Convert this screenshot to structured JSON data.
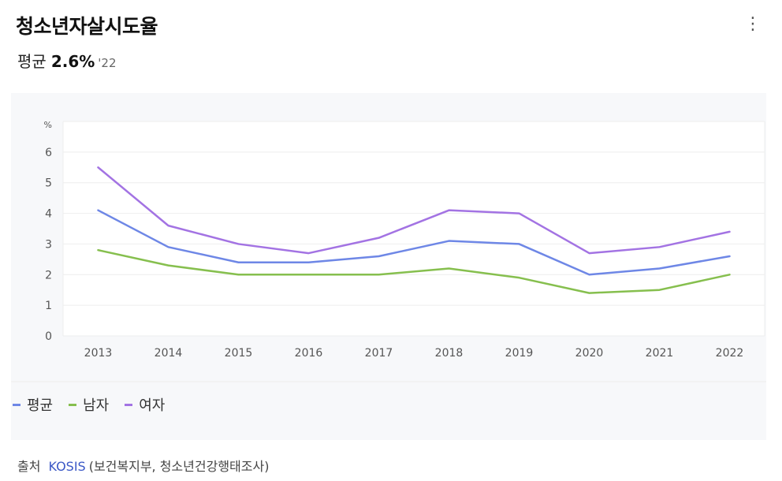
{
  "header": {
    "title": "청소년자살시도율",
    "more_icon": "⋮",
    "summary_label": "평균",
    "summary_value": "2.6%",
    "summary_year": "'22"
  },
  "source": {
    "label": "출처",
    "link_text": "KOSIS",
    "detail": "(보건복지부, 청소년건강행태조사)"
  },
  "colors": {
    "avg": "#6e87e6",
    "male": "#86bf4e",
    "female": "#a373e3"
  },
  "chart_data": {
    "type": "line",
    "ylabel": "%",
    "ylim": [
      0,
      7
    ],
    "yticks": [
      0,
      1,
      2,
      3,
      4,
      5,
      6
    ],
    "grid": true,
    "legend": "bottom-left",
    "categories": [
      "2013",
      "2014",
      "2015",
      "2016",
      "2017",
      "2018",
      "2019",
      "2020",
      "2021",
      "2022"
    ],
    "series": [
      {
        "name": "평균",
        "values": [
          4.1,
          2.9,
          2.4,
          2.4,
          2.6,
          3.1,
          3.0,
          2.0,
          2.2,
          2.6
        ]
      },
      {
        "name": "남자",
        "values": [
          2.8,
          2.3,
          2.0,
          2.0,
          2.0,
          2.2,
          1.9,
          1.4,
          1.5,
          2.0
        ]
      },
      {
        "name": "여자",
        "values": [
          5.5,
          3.6,
          3.0,
          2.7,
          3.2,
          4.1,
          4.0,
          2.7,
          2.9,
          3.4
        ]
      }
    ]
  }
}
